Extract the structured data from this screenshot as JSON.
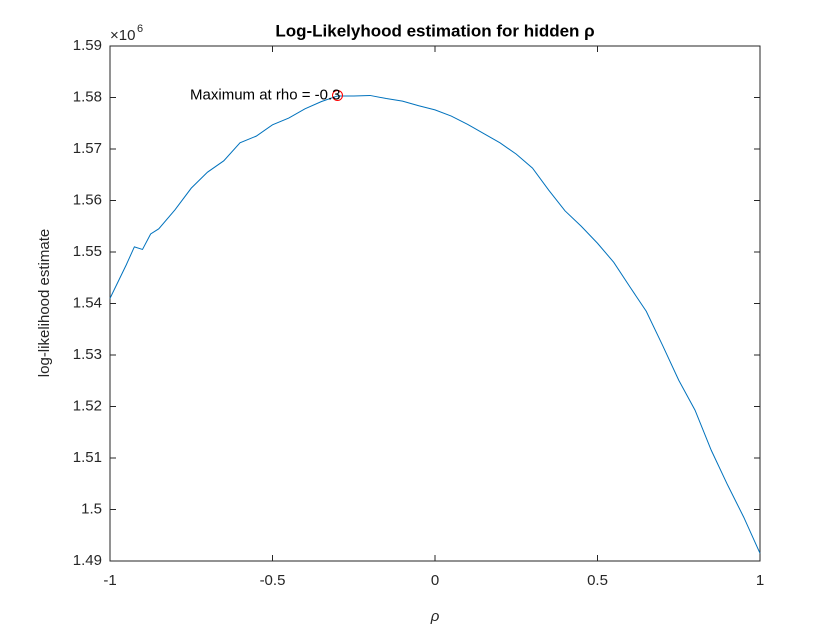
{
  "chart_data": {
    "type": "line",
    "title": "Log-Likelyhood estimation for hidden ρ",
    "xlabel": "ρ",
    "ylabel": "log-likelihood estimate",
    "y_multiplier": "×10",
    "y_multiplier_exponent": "6",
    "annotation": "Maximum at rho = -0.3",
    "xlim": [
      -1,
      1
    ],
    "xticks": [
      -1,
      -0.5,
      0,
      0.5,
      1
    ],
    "ylim": [
      1.49,
      1.59
    ],
    "yticks": [
      1.49,
      1.5,
      1.51,
      1.52,
      1.53,
      1.54,
      1.55,
      1.56,
      1.57,
      1.58,
      1.59
    ],
    "series": [
      {
        "color": "#0072bd",
        "x": [
          -1,
          -0.95,
          -0.925,
          -0.9,
          -0.875,
          -0.85,
          -0.8,
          -0.75,
          -0.7,
          -0.65,
          -0.6,
          -0.55,
          -0.5,
          -0.45,
          -0.4,
          -0.35,
          -0.3,
          -0.25,
          -0.2,
          -0.15,
          -0.1,
          -0.05,
          0,
          0.05,
          0.1,
          0.15,
          0.2,
          0.25,
          0.3,
          0.35,
          0.4,
          0.45,
          0.5,
          0.55,
          0.6,
          0.65,
          0.7,
          0.75,
          0.8,
          0.85,
          0.9,
          0.95,
          1
        ],
        "values": [
          1.541,
          1.5475,
          1.551,
          1.5505,
          1.5535,
          1.5545,
          1.5582,
          1.5624,
          1.5655,
          1.5677,
          1.5712,
          1.5725,
          1.5747,
          1.576,
          1.5778,
          1.5792,
          1.5803,
          1.5803,
          1.5804,
          1.5798,
          1.5793,
          1.5784,
          1.5776,
          1.5764,
          1.5748,
          1.573,
          1.5712,
          1.569,
          1.5663,
          1.562,
          1.558,
          1.555,
          1.5517,
          1.548,
          1.5432,
          1.5385,
          1.5319,
          1.5251,
          1.5193,
          1.5115,
          1.5048,
          1.4985,
          1.4915
        ]
      },
      {
        "color": "#ff0000",
        "marker": "circle",
        "x": [
          -0.3
        ],
        "values": [
          1.5804
        ]
      }
    ]
  }
}
